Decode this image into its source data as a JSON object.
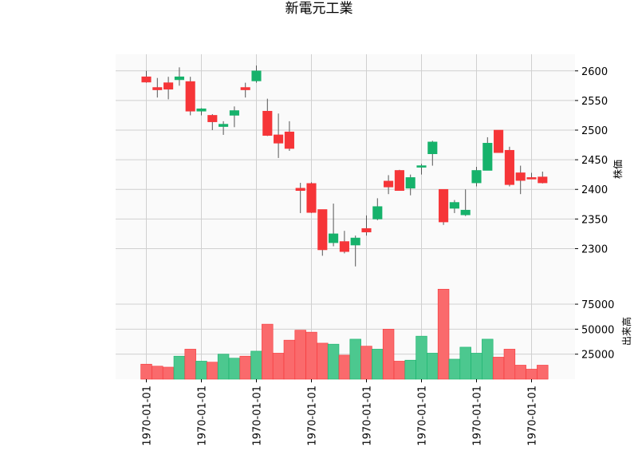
{
  "chart_data": {
    "type": "candlestick",
    "title": "新電元工業",
    "price_panel": {
      "ylabel": "株価",
      "yticks": [
        2300,
        2350,
        2400,
        2450,
        2500,
        2550,
        2600
      ],
      "ylim": [
        2240,
        2628
      ]
    },
    "volume_panel": {
      "ylabel": "出来高",
      "yticks": [
        25000,
        50000,
        75000
      ],
      "ytick_labels": [
        "25000",
        "50000",
        "75000"
      ],
      "ylim": [
        0,
        95000
      ]
    },
    "x_tick_labels": [
      "1970-01-01",
      "1970-01-01",
      "1970-01-01",
      "1970-01-01",
      "1970-01-01",
      "1970-01-01",
      "1970-01-01",
      "1970-01-01"
    ],
    "x_tick_indices": [
      0,
      5,
      10,
      15,
      20,
      25,
      30,
      35
    ],
    "up_color": "#16b26b",
    "down_color": "#f63538",
    "candles": [
      {
        "open": 2590,
        "high": 2600,
        "low": 2580,
        "close": 2581,
        "volume": 15000
      },
      {
        "open": 2572,
        "high": 2588,
        "low": 2555,
        "close": 2568,
        "volume": 13000
      },
      {
        "open": 2580,
        "high": 2590,
        "low": 2552,
        "close": 2569,
        "volume": 12000
      },
      {
        "open": 2585,
        "high": 2606,
        "low": 2575,
        "close": 2590,
        "volume": 23000
      },
      {
        "open": 2582,
        "high": 2590,
        "low": 2525,
        "close": 2532,
        "volume": 30000
      },
      {
        "open": 2532,
        "high": 2537,
        "low": 2525,
        "close": 2536,
        "volume": 18000
      },
      {
        "open": 2525,
        "high": 2527,
        "low": 2500,
        "close": 2514,
        "volume": 17000
      },
      {
        "open": 2506,
        "high": 2515,
        "low": 2492,
        "close": 2510,
        "volume": 25000
      },
      {
        "open": 2525,
        "high": 2540,
        "low": 2505,
        "close": 2533,
        "volume": 21000
      },
      {
        "open": 2572,
        "high": 2580,
        "low": 2555,
        "close": 2568,
        "volume": 23000
      },
      {
        "open": 2583,
        "high": 2609,
        "low": 2580,
        "close": 2600,
        "volume": 28000
      },
      {
        "open": 2532,
        "high": 2553,
        "low": 2490,
        "close": 2491,
        "volume": 55000
      },
      {
        "open": 2492,
        "high": 2528,
        "low": 2453,
        "close": 2478,
        "volume": 26000
      },
      {
        "open": 2497,
        "high": 2515,
        "low": 2465,
        "close": 2469,
        "volume": 39000
      },
      {
        "open": 2402,
        "high": 2411,
        "low": 2360,
        "close": 2398,
        "volume": 49000
      },
      {
        "open": 2410,
        "high": 2412,
        "low": 2360,
        "close": 2361,
        "volume": 47000
      },
      {
        "open": 2366,
        "high": 2366,
        "low": 2288,
        "close": 2298,
        "volume": 36000
      },
      {
        "open": 2310,
        "high": 2376,
        "low": 2304,
        "close": 2325,
        "volume": 35000
      },
      {
        "open": 2312,
        "high": 2330,
        "low": 2292,
        "close": 2295,
        "volume": 24000
      },
      {
        "open": 2306,
        "high": 2322,
        "low": 2270,
        "close": 2318,
        "volume": 40000
      },
      {
        "open": 2334,
        "high": 2356,
        "low": 2322,
        "close": 2328,
        "volume": 33000
      },
      {
        "open": 2350,
        "high": 2385,
        "low": 2348,
        "close": 2371,
        "volume": 30000
      },
      {
        "open": 2414,
        "high": 2424,
        "low": 2392,
        "close": 2404,
        "volume": 50000
      },
      {
        "open": 2432,
        "high": 2433,
        "low": 2400,
        "close": 2398,
        "volume": 18000
      },
      {
        "open": 2402,
        "high": 2425,
        "low": 2390,
        "close": 2420,
        "volume": 19000
      },
      {
        "open": 2440,
        "high": 2443,
        "low": 2425,
        "close": 2440,
        "volume": 43000
      },
      {
        "open": 2460,
        "high": 2482,
        "low": 2440,
        "close": 2480,
        "volume": 26000
      },
      {
        "open": 2400,
        "high": 2400,
        "low": 2340,
        "close": 2345,
        "volume": 90000
      },
      {
        "open": 2368,
        "high": 2382,
        "low": 2360,
        "close": 2378,
        "volume": 20000
      },
      {
        "open": 2357,
        "high": 2400,
        "low": 2355,
        "close": 2365,
        "volume": 32000
      },
      {
        "open": 2411,
        "high": 2438,
        "low": 2405,
        "close": 2432,
        "volume": 26000
      },
      {
        "open": 2432,
        "high": 2488,
        "low": 2432,
        "close": 2478,
        "volume": 40000
      },
      {
        "open": 2500,
        "high": 2500,
        "low": 2462,
        "close": 2462,
        "volume": 22000
      },
      {
        "open": 2466,
        "high": 2472,
        "low": 2405,
        "close": 2408,
        "volume": 30000
      },
      {
        "open": 2428,
        "high": 2440,
        "low": 2392,
        "close": 2415,
        "volume": 14000
      },
      {
        "open": 2420,
        "high": 2428,
        "low": 2418,
        "close": 2419,
        "volume": 10000
      },
      {
        "open": 2421,
        "high": 2430,
        "low": 2410,
        "close": 2411,
        "volume": 14000
      }
    ]
  }
}
